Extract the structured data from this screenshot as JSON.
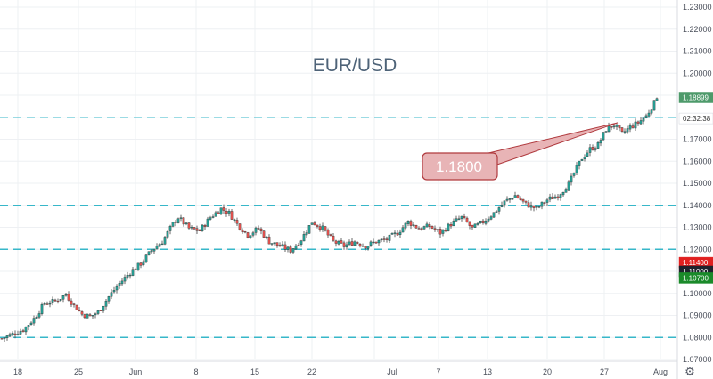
{
  "chart_data": {
    "type": "candlestick",
    "title": "EUR/USD",
    "y_axis": {
      "position": "right",
      "ylim": [
        1.07,
        1.23
      ],
      "ticks": [
        "1.23000",
        "1.22000",
        "1.21000",
        "1.20000",
        "1.19000",
        "1.18000",
        "1.17000",
        "1.16000",
        "1.15000",
        "1.14000",
        "1.13000",
        "1.12000",
        "1.11000",
        "1.10000",
        "1.09000",
        "1.08000",
        "1.07000"
      ]
    },
    "x_axis": {
      "labels": [
        "18",
        "25",
        "Jun",
        "8",
        "15",
        "22",
        "Jul",
        "7",
        "13",
        "20",
        "27",
        "Aug"
      ]
    },
    "grid": true,
    "horizontal_levels": [
      1.18,
      1.14,
      1.12,
      1.08
    ],
    "price_tags": [
      {
        "label": "1.18899",
        "value": 1.18899,
        "color": "#4e9a6b",
        "text_color": "#ffffff"
      },
      {
        "label": "02:32:38",
        "value": 1.17945,
        "color": "#ffffff",
        "text_color": "#333333"
      },
      {
        "label": "1.11400",
        "value": 1.114,
        "color": "#e02020",
        "text_color": "#ffffff"
      },
      {
        "label": "1.11000",
        "value": 1.11,
        "color": "#1e222d",
        "text_color": "#ffffff"
      },
      {
        "label": "1.10700",
        "value": 1.107,
        "color": "#1a8a2a",
        "text_color": "#ffffff"
      }
    ],
    "callout": {
      "label": "1.1800",
      "anchor_value": 1.1775
    },
    "series": [
      {
        "close_path": [
          [
            0,
            1.0795
          ],
          [
            4,
            1.0815
          ],
          [
            8,
            1.0835
          ],
          [
            12,
            1.0885
          ],
          [
            16,
            1.0955
          ],
          [
            20,
            1.0965
          ],
          [
            24,
            1.0995
          ],
          [
            27,
            1.0945
          ],
          [
            30,
            1.0905
          ],
          [
            33,
            1.0895
          ],
          [
            36,
            1.0915
          ],
          [
            40,
            1.0985
          ],
          [
            44,
            1.1045
          ],
          [
            48,
            1.1095
          ],
          [
            52,
            1.1135
          ],
          [
            56,
            1.1195
          ],
          [
            60,
            1.1235
          ],
          [
            64,
            1.1315
          ],
          [
            66,
            1.1345
          ],
          [
            70,
            1.1295
          ],
          [
            74,
            1.1285
          ],
          [
            78,
            1.1345
          ],
          [
            82,
            1.1385
          ],
          [
            85,
            1.1365
          ],
          [
            88,
            1.1315
          ],
          [
            92,
            1.1265
          ],
          [
            96,
            1.1295
          ],
          [
            100,
            1.1235
          ],
          [
            104,
            1.1215
          ],
          [
            108,
            1.1195
          ],
          [
            112,
            1.1245
          ],
          [
            116,
            1.1325
          ],
          [
            120,
            1.1295
          ],
          [
            124,
            1.1235
          ],
          [
            128,
            1.1215
          ],
          [
            132,
            1.1235
          ],
          [
            136,
            1.1215
          ],
          [
            140,
            1.1235
          ],
          [
            144,
            1.1245
          ],
          [
            148,
            1.1275
          ],
          [
            152,
            1.1325
          ],
          [
            156,
            1.1295
          ],
          [
            160,
            1.1305
          ],
          [
            164,
            1.1275
          ],
          [
            168,
            1.1315
          ],
          [
            172,
            1.1345
          ],
          [
            176,
            1.1295
          ],
          [
            180,
            1.1325
          ],
          [
            184,
            1.1365
          ],
          [
            188,
            1.1415
          ],
          [
            192,
            1.1445
          ],
          [
            196,
            1.1405
          ],
          [
            200,
            1.1385
          ],
          [
            204,
            1.1425
          ],
          [
            208,
            1.1445
          ],
          [
            212,
            1.1495
          ],
          [
            214,
            1.1545
          ],
          [
            217,
            1.1615
          ],
          [
            220,
            1.1655
          ],
          [
            223,
            1.1675
          ],
          [
            226,
            1.1745
          ],
          [
            229,
            1.1765
          ],
          [
            232,
            1.1725
          ],
          [
            235,
            1.1755
          ],
          [
            238,
            1.1775
          ],
          [
            241,
            1.1805
          ],
          [
            243,
            1.1845
          ],
          [
            245,
            1.1885
          ]
        ]
      }
    ]
  }
}
